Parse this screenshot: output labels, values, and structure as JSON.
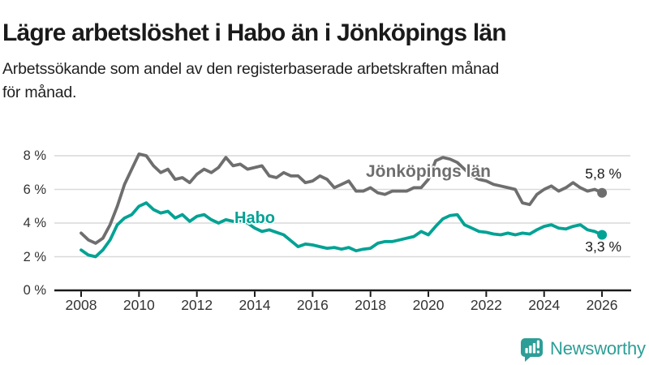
{
  "header": {
    "title": "Lägre arbetslöshet i Habo än i Jönköpings län",
    "subtitle_line1": "Arbetssökande som andel av den registerbaserade arbetskraften månad",
    "subtitle_line2": "för månad."
  },
  "chart_data": {
    "type": "line",
    "unit": "%",
    "x_start": 2008,
    "x_step_years": 0.25,
    "x_end": 2026,
    "series": [
      {
        "name": "Jönköpings län",
        "color": "#6e6e6e",
        "end_label": "5,8 %",
        "end_value": 5.8,
        "values": [
          3.4,
          3.0,
          2.8,
          3.1,
          3.9,
          5.0,
          6.3,
          7.2,
          8.1,
          8.0,
          7.4,
          7.0,
          7.2,
          6.6,
          6.7,
          6.4,
          6.9,
          7.2,
          7.0,
          7.3,
          7.9,
          7.4,
          7.5,
          7.2,
          7.3,
          7.4,
          6.8,
          6.7,
          7.0,
          6.8,
          6.8,
          6.4,
          6.5,
          6.8,
          6.6,
          6.1,
          6.3,
          6.5,
          5.9,
          5.9,
          6.1,
          5.8,
          5.7,
          5.9,
          5.9,
          5.9,
          6.1,
          6.1,
          6.6,
          7.7,
          7.9,
          7.8,
          7.6,
          7.2,
          6.8,
          6.6,
          6.5,
          6.3,
          6.2,
          6.1,
          6.0,
          5.2,
          5.1,
          5.7,
          6.0,
          6.2,
          5.9,
          6.1,
          6.4,
          6.1,
          5.9,
          6.0,
          5.8
        ]
      },
      {
        "name": "Habo",
        "color": "#00a294",
        "end_label": "3,3 %",
        "end_value": 3.3,
        "values": [
          2.4,
          2.1,
          2.0,
          2.4,
          3.0,
          3.9,
          4.3,
          4.5,
          5.0,
          5.2,
          4.8,
          4.6,
          4.7,
          4.3,
          4.5,
          4.1,
          4.4,
          4.5,
          4.2,
          4.0,
          4.2,
          4.1,
          4.15,
          4.0,
          3.7,
          3.5,
          3.6,
          3.45,
          3.3,
          2.95,
          2.6,
          2.75,
          2.7,
          2.6,
          2.5,
          2.55,
          2.45,
          2.55,
          2.35,
          2.45,
          2.5,
          2.8,
          2.9,
          2.9,
          3.0,
          3.1,
          3.2,
          3.5,
          3.3,
          3.8,
          4.25,
          4.45,
          4.5,
          3.9,
          3.7,
          3.5,
          3.45,
          3.35,
          3.3,
          3.4,
          3.3,
          3.4,
          3.35,
          3.6,
          3.8,
          3.9,
          3.7,
          3.65,
          3.8,
          3.9,
          3.6,
          3.5,
          3.3
        ]
      }
    ],
    "yticks": [
      0,
      2,
      4,
      6,
      8
    ],
    "ytick_labels": [
      "0 %",
      "2 %",
      "4 %",
      "6 %",
      "8 %"
    ],
    "xticks": [
      2008,
      2010,
      2012,
      2014,
      2016,
      2018,
      2020,
      2022,
      2024,
      2026
    ],
    "xtick_labels": [
      "2008",
      "2010",
      "2012",
      "2014",
      "2016",
      "2018",
      "2020",
      "2022",
      "2024",
      "2026"
    ],
    "ylim": [
      0,
      9
    ],
    "xlim": [
      2007,
      2027
    ],
    "grid": "horizontal-light",
    "legend_position": "inline-labels-on-lines",
    "colors": {
      "grid": "#d9d9d9",
      "axis": "#1a1a1a",
      "tick_text": "#333333"
    }
  },
  "footer": {
    "brand": "Newsworthy",
    "brand_color": "#2c9e97",
    "icon": "newsworthy-speech-bubble-bar-chart-icon"
  }
}
